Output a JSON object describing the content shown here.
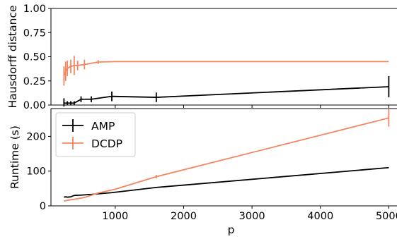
{
  "chart_data": [
    {
      "type": "line",
      "title": "",
      "ylabel": "Hausdorff distance",
      "xlabel": "",
      "xlim": [
        60,
        5120
      ],
      "ylim": [
        0,
        1.0
      ],
      "yticks": [
        "0.00",
        "0.25",
        "0.50",
        "0.75",
        "1.00"
      ],
      "grid": false,
      "series": [
        {
          "name": "AMP",
          "color": "#000000",
          "x": [
            250,
            300,
            350,
            400,
            500,
            650,
            950,
            1600,
            5000
          ],
          "y": [
            0.02,
            0.02,
            0.02,
            0.02,
            0.06,
            0.06,
            0.09,
            0.08,
            0.19
          ],
          "err": [
            0.05,
            0.02,
            0.02,
            0.02,
            0.03,
            0.03,
            0.05,
            0.05,
            0.11
          ]
        },
        {
          "name": "DCDP",
          "color": "#f4845f",
          "x": [
            250,
            275,
            300,
            350,
            400,
            450,
            550,
            750,
            1000,
            1600,
            5000
          ],
          "y": [
            0.3,
            0.35,
            0.38,
            0.4,
            0.41,
            0.41,
            0.42,
            0.445,
            0.45,
            0.45,
            0.45
          ],
          "err": [
            0.1,
            0.1,
            0.08,
            0.07,
            0.1,
            0.05,
            0.05,
            0.02,
            0.0,
            0.0,
            0.0
          ]
        }
      ]
    },
    {
      "type": "line",
      "title": "",
      "ylabel": "Runtime (s)",
      "xlabel": "p",
      "xlim": [
        60,
        5120
      ],
      "ylim": [
        0,
        280
      ],
      "yticks": [
        "0",
        "100",
        "200"
      ],
      "xticks": [
        "1000",
        "2000",
        "3000",
        "4000",
        "5000"
      ],
      "grid": false,
      "legend": "upper-left",
      "series": [
        {
          "name": "AMP",
          "color": "#000000",
          "x": [
            250,
            275,
            300,
            350,
            400,
            500,
            650,
            950,
            1600,
            5000
          ],
          "y": [
            25,
            26,
            25,
            26,
            30,
            31,
            33,
            38,
            53,
            110
          ],
          "err": [
            0,
            0,
            0,
            0,
            0,
            0,
            0,
            0,
            0,
            0
          ]
        },
        {
          "name": "DCDP",
          "color": "#f4845f",
          "x": [
            250,
            300,
            400,
            550,
            750,
            1000,
            1600,
            5000
          ],
          "y": [
            14,
            16,
            19,
            24,
            37,
            48,
            84,
            253
          ],
          "err": [
            0,
            0,
            0,
            0,
            0,
            0,
            5,
            25
          ]
        }
      ]
    }
  ]
}
